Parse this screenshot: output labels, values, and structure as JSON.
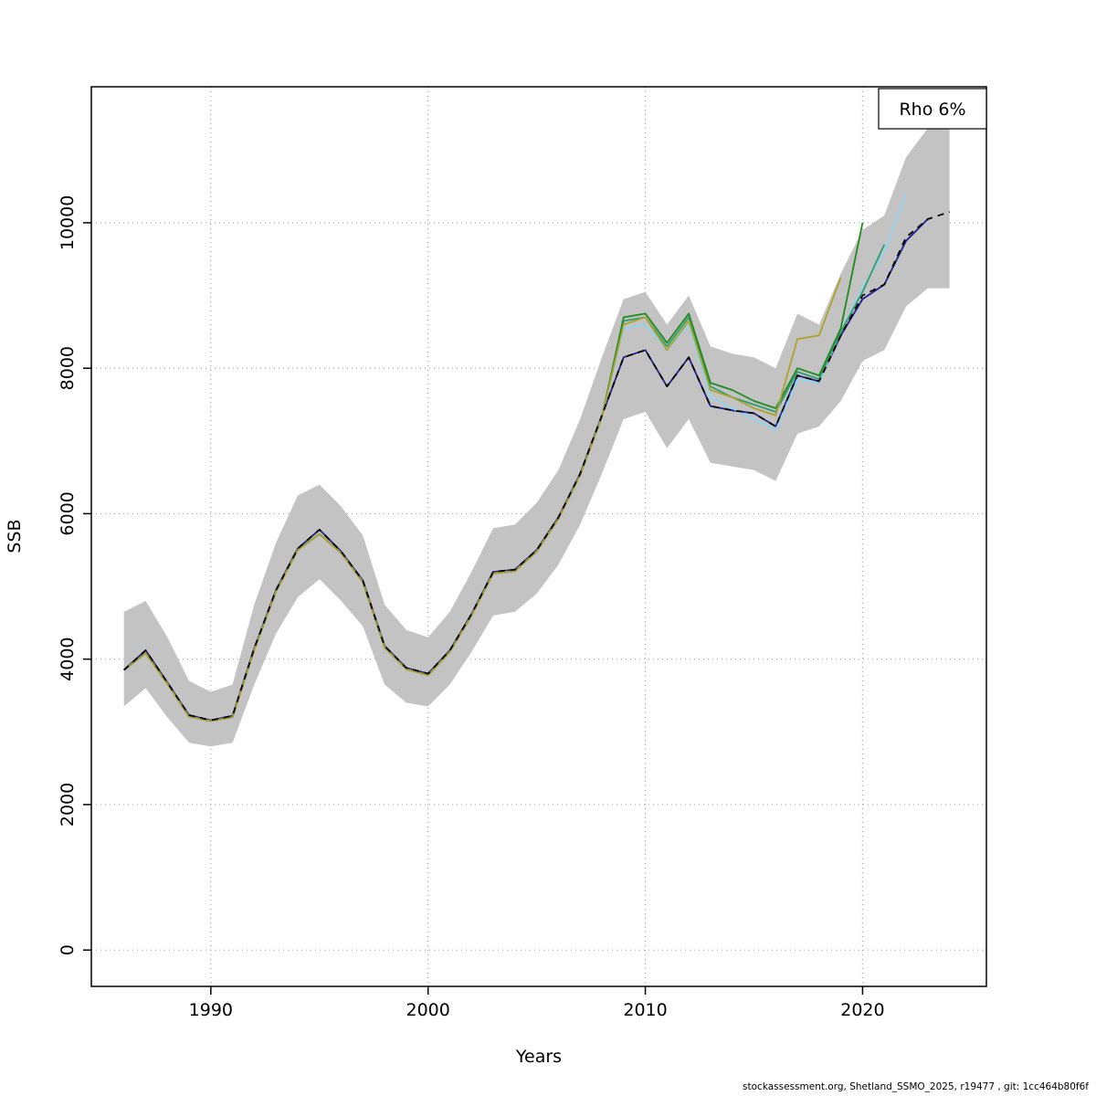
{
  "footer": {
    "text": "stockassessment.org, Shetland_SSMO_2025, r19477 , git: 1cc464b80f6f"
  },
  "chart_data": {
    "type": "line",
    "title": "",
    "xlabel": "Years",
    "ylabel": "SSB",
    "legend": {
      "label": "Rho 6%",
      "position": "top-right"
    },
    "xlim": [
      1984.5,
      2025.7
    ],
    "ylim": [
      -500,
      11870
    ],
    "x_ticks": [
      1990,
      2000,
      2010,
      2020
    ],
    "y_ticks": [
      0,
      2000,
      4000,
      6000,
      8000,
      10000
    ],
    "grid": "dotted",
    "grid_color": "#a8a8a8",
    "band": {
      "name": "confidence-band",
      "color": "#c3c3c3",
      "start_year": 1986,
      "lower": [
        3350,
        3600,
        3200,
        2850,
        2800,
        2850,
        3650,
        4350,
        4850,
        5100,
        4800,
        4450,
        3650,
        3400,
        3350,
        3650,
        4100,
        4600,
        4650,
        4900,
        5300,
        5850,
        6550,
        7300,
        7400,
        6900,
        7300,
        6700,
        6650,
        6600,
        6450,
        7100,
        7200,
        7550,
        8100,
        8250,
        8850,
        9100,
        9100
      ],
      "upper": [
        4650,
        4800,
        4300,
        3700,
        3550,
        3650,
        4750,
        5600,
        6250,
        6400,
        6100,
        5700,
        4750,
        4400,
        4300,
        4650,
        5200,
        5800,
        5850,
        6150,
        6600,
        7300,
        8150,
        8950,
        9050,
        8600,
        9000,
        8300,
        8200,
        8150,
        8000,
        8750,
        8600,
        9300,
        9900,
        10100,
        10900,
        11300,
        11350
      ]
    },
    "series": [
      {
        "name": "retro-peel-2023-navy",
        "color": "#221e8c",
        "width": 1.8,
        "start_year": 1986,
        "values": [
          3850,
          4120,
          3680,
          3230,
          3160,
          3220,
          4150,
          4950,
          5520,
          5780,
          5480,
          5080,
          4180,
          3880,
          3800,
          4120,
          4620,
          5200,
          5230,
          5500,
          5950,
          6550,
          7350,
          8150,
          8250,
          7750,
          8150,
          7480,
          7420,
          7380,
          7200,
          7900,
          7820,
          8450,
          8950,
          9150,
          9750,
          10050
        ]
      },
      {
        "name": "retro-peel-2022-skyblue",
        "color": "#8fd4f0",
        "width": 1.8,
        "start_year": 1986,
        "values": [
          3850,
          4080,
          3660,
          3210,
          3150,
          3200,
          4130,
          4930,
          5500,
          5720,
          5460,
          5060,
          4160,
          3860,
          3780,
          4100,
          4600,
          5180,
          5210,
          5480,
          5930,
          6530,
          7330,
          8550,
          8600,
          8250,
          8600,
          7600,
          7450,
          7300,
          7150,
          7850,
          7800,
          8500,
          9100,
          9600,
          10400
        ]
      },
      {
        "name": "retro-peel-2021-teal",
        "color": "#2e9e6f",
        "width": 1.8,
        "start_year": 1986,
        "values": [
          3850,
          4080,
          3660,
          3210,
          3150,
          3200,
          4130,
          4930,
          5500,
          5720,
          5460,
          5060,
          4160,
          3860,
          3780,
          4100,
          4600,
          5180,
          5210,
          5480,
          5930,
          6530,
          7330,
          8650,
          8700,
          8300,
          8700,
          7750,
          7600,
          7500,
          7400,
          7950,
          7850,
          8500,
          9050,
          9700
        ]
      },
      {
        "name": "retro-peel-2020-green",
        "color": "#1f8b1f",
        "width": 1.8,
        "start_year": 1986,
        "values": [
          3850,
          4080,
          3660,
          3210,
          3150,
          3200,
          4130,
          4930,
          5500,
          5720,
          5460,
          5060,
          4160,
          3860,
          3780,
          4100,
          4600,
          5180,
          5210,
          5480,
          5930,
          6530,
          7330,
          8700,
          8750,
          8350,
          8750,
          7800,
          7700,
          7550,
          7450,
          8000,
          7900,
          8550,
          10000
        ]
      },
      {
        "name": "retro-peel-2019-olive",
        "color": "#b0a12c",
        "width": 1.8,
        "start_year": 1986,
        "values": [
          3850,
          4080,
          3660,
          3210,
          3150,
          3200,
          4130,
          4930,
          5500,
          5720,
          5460,
          5060,
          4160,
          3860,
          3780,
          4100,
          4600,
          5180,
          5210,
          5480,
          5930,
          6530,
          7330,
          8600,
          8700,
          8250,
          8650,
          7700,
          7600,
          7450,
          7350,
          8400,
          8450,
          9250
        ]
      },
      {
        "name": "base-run-dashed",
        "color": "#000000",
        "width": 1.8,
        "dash": "7 6",
        "start_year": 1986,
        "values": [
          3850,
          4120,
          3680,
          3230,
          3160,
          3220,
          4150,
          4950,
          5520,
          5780,
          5480,
          5080,
          4180,
          3880,
          3800,
          4120,
          4620,
          5200,
          5230,
          5500,
          5950,
          6550,
          7350,
          8150,
          8250,
          7750,
          8150,
          7480,
          7420,
          7380,
          7200,
          7900,
          7820,
          8450,
          9000,
          9150,
          9800,
          10050,
          10150
        ]
      }
    ]
  }
}
